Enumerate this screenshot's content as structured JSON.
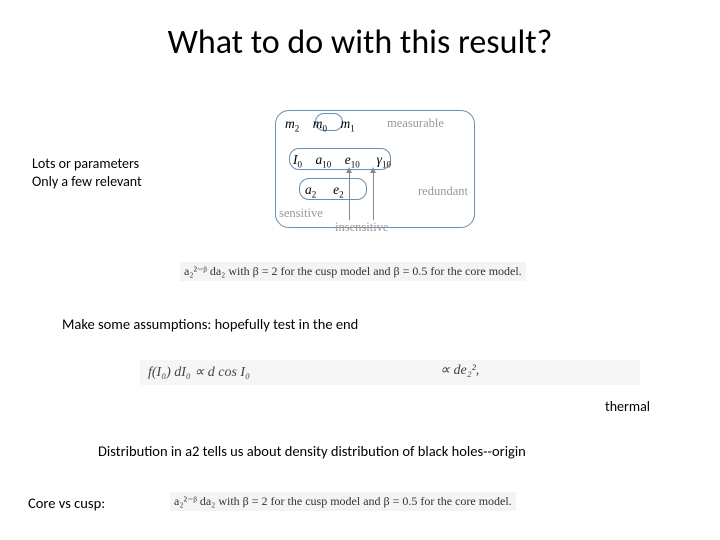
{
  "title": "What to do with this result?",
  "left_note_l1": "Lots or parameters",
  "left_note_l2": "Only a few relevant",
  "diagram": {
    "m2": "m",
    "m0": "m",
    "m1": "m",
    "I0": "I",
    "a10": "a",
    "e10": "e",
    "g10": "γ",
    "a2": "a",
    "e2": "e",
    "label_measurable": "measurable",
    "label_redundant": "redundant",
    "label_sensitive": "sensitive",
    "label_insensitive": "insensitive",
    "sub2": "2",
    "sub0": "0",
    "sub1": "1",
    "sub10": "10"
  },
  "caption1": "a₂²⁻ᵝ da₂ with β = 2 for the cusp model and β = 0.5 for the core model.",
  "assumptions": "Make some assumptions: hopefully test in the end",
  "formula_f": "f(I₀) dI₀ ∝ d cos I₀",
  "formula_prop": "∝ de₂²,",
  "thermal": "thermal",
  "distribution": "Distribution in a2 tells us about density distribution of black holes--origin",
  "corevscusp": "Core vs cusp:",
  "caption2": "a₂²⁻ᵝ da₂ with β = 2 for the cusp model and β = 0.5 for the core model.",
  "colors": {
    "box_border": "#6b8fb0",
    "faded_text": "#999999",
    "formula_bg": "#f6f6f6",
    "text": "#000000"
  }
}
